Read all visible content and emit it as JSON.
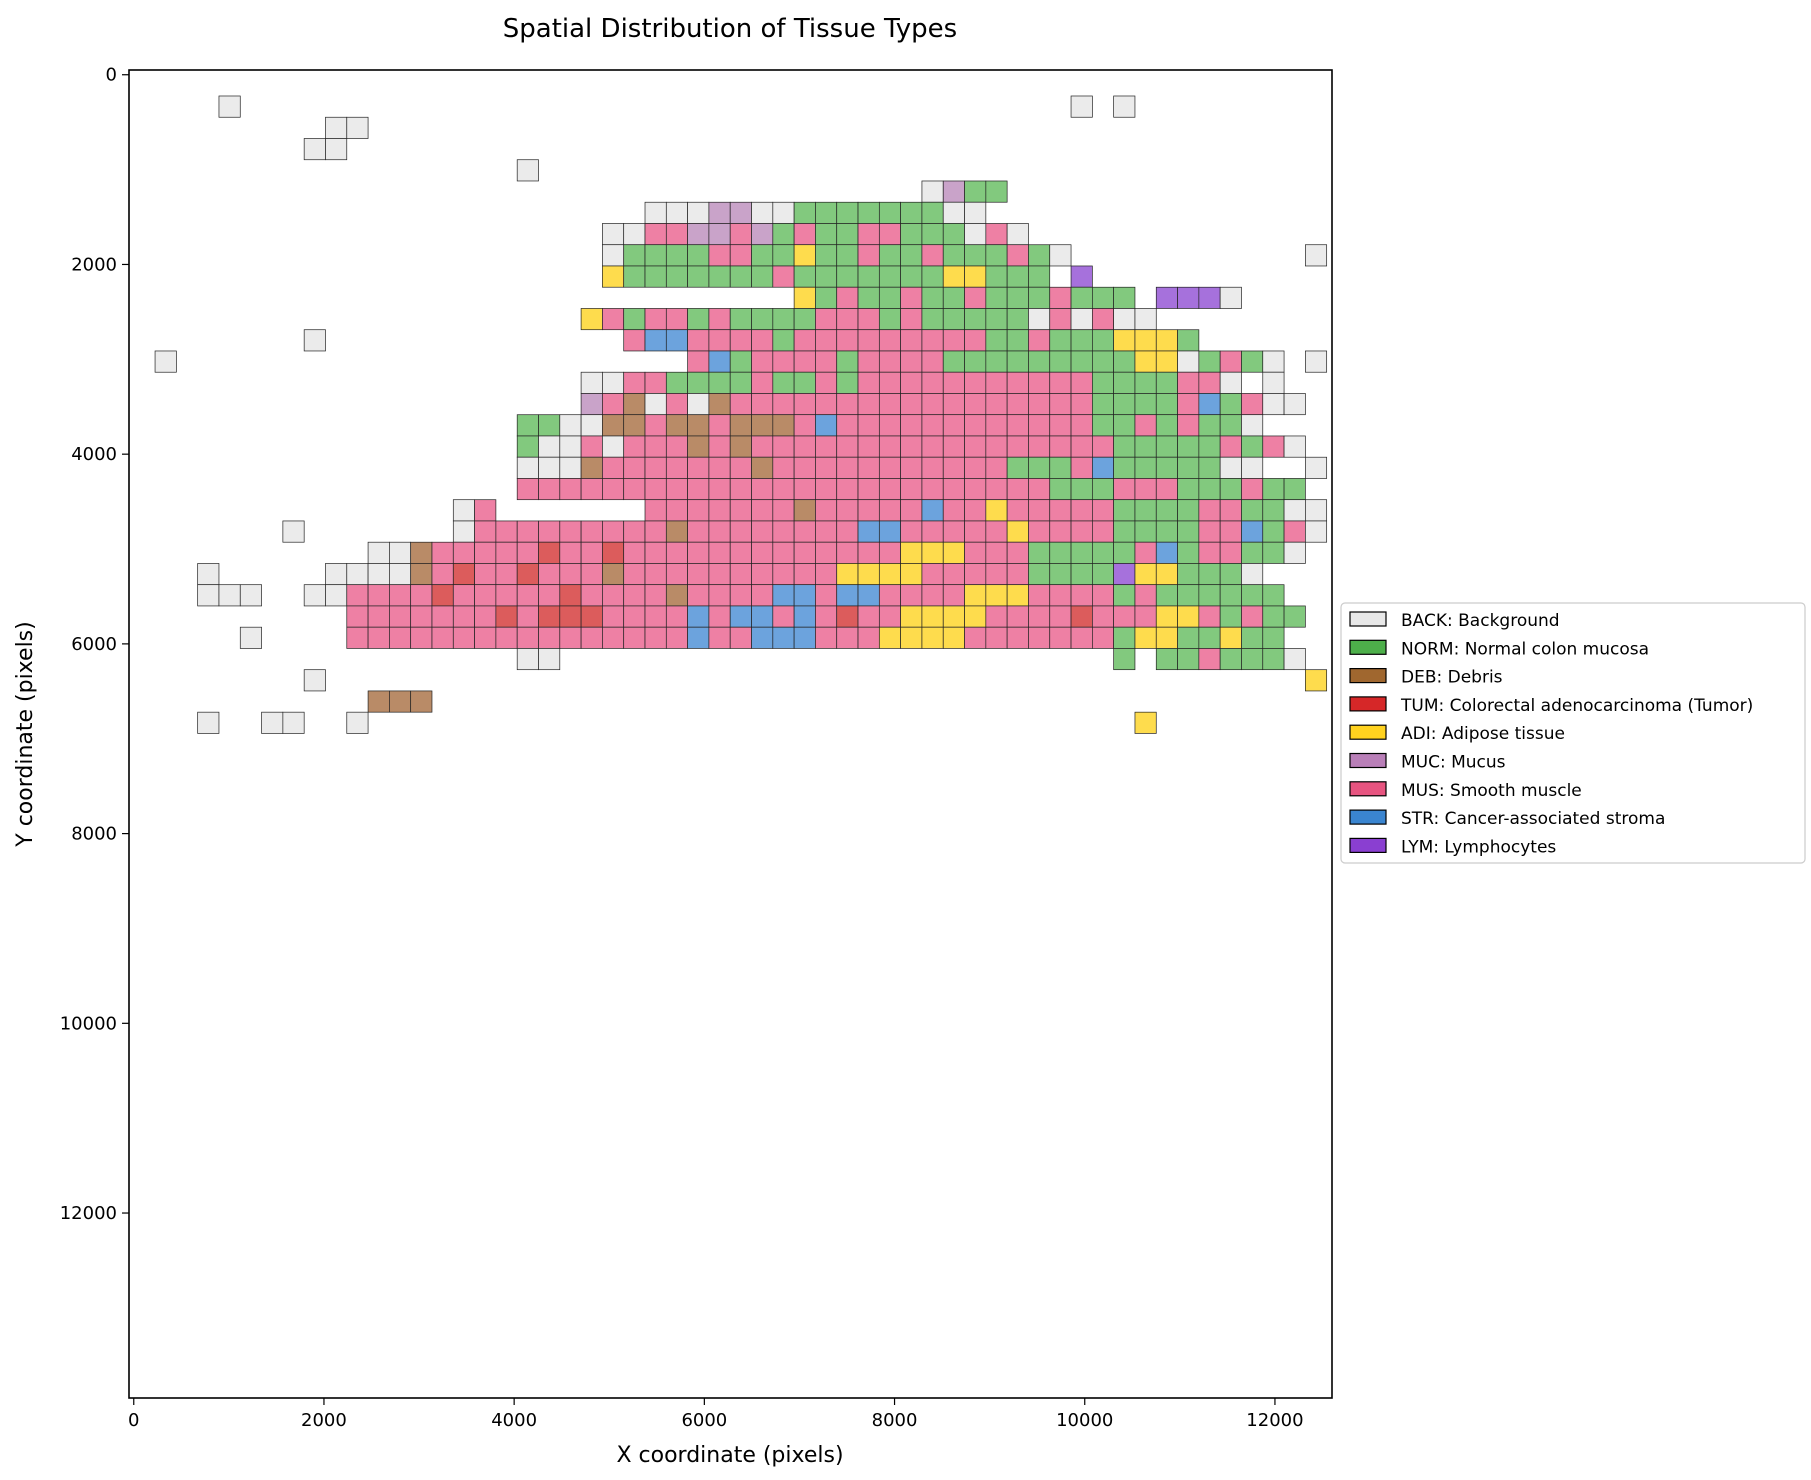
{
  "chart_data": {
    "type": "heatmap",
    "title": "Spatial Distribution of Tissue Types",
    "xlabel": "X coordinate (pixels)",
    "ylabel": "Y coordinate (pixels)",
    "xlim": [
      -50,
      12600
    ],
    "ylim": [
      13950,
      -50
    ],
    "y_inverted": true,
    "xticks": [
      0,
      2000,
      4000,
      6000,
      8000,
      10000,
      12000
    ],
    "yticks": [
      0,
      2000,
      4000,
      6000,
      8000,
      10000,
      12000
    ],
    "tile_size": 224,
    "legend_position": "center-right, outside plot",
    "classes": [
      {
        "code": "BACK",
        "label": "BACK: Background",
        "legend_color": "#e8e8e8",
        "tile_color": "#ebebeb"
      },
      {
        "code": "NORM",
        "label": "NORM: Normal colon mucosa",
        "legend_color": "#4daf4a",
        "tile_color": "#82c97e"
      },
      {
        "code": "DEB",
        "label": "DEB: Debris",
        "legend_color": "#a0672f",
        "tile_color": "#b98b67"
      },
      {
        "code": "TUM",
        "label": "TUM: Colorectal adenocarcinoma (Tumor)",
        "legend_color": "#d62728",
        "tile_color": "#dc5c5c"
      },
      {
        "code": "ADI",
        "label": "ADI: Adipose tissue",
        "legend_color": "#ffd21f",
        "tile_color": "#fedc4d"
      },
      {
        "code": "MUC",
        "label": "MUC: Mucus",
        "legend_color": "#b97fb8",
        "tile_color": "#c9a3c9"
      },
      {
        "code": "MUS",
        "label": "MUS: Smooth muscle",
        "legend_color": "#e75480",
        "tile_color": "#ee80a4"
      },
      {
        "code": "STR",
        "label": "STR: Cancer-associated stroma",
        "legend_color": "#3a85d0",
        "tile_color": "#6ca3dd"
      },
      {
        "code": "LYM",
        "label": "LYM: Lymphocytes",
        "legend_color": "#8a3fd1",
        "tile_color": "#a671dc"
      }
    ],
    "grid_origin": {
      "x": 0,
      "y": 0
    },
    "grid_rows_note": "Each string is one tile row (row index r => y = r*224). Characters map to tile columns (col index c => x = c*224). Codes: b=BACK g=NORM d=DEB t=TUM a=ADI c=MUC m=MUS s=STR l=LYM .=empty",
    "grid": [
      "..........................................................",
      "....b.......................................b.b...........",
      ".........bb...............................................",
      "........bb................................................",
      "..................b.......................................",
      ".....................................bcgg.................",
      "........................bbbccbbgggggggbb..................",
      "......................bbmmccmcgmggmmgggbmb................",
      "......................bggggmmggaggmggmgggmgb...........b..",
      "......................agggggggmgggggggaaggg.l.............",
      "...............................agmggmggmgggmggg.lllb......",
      ".....................amgmmgmggggmmmgmgggggbmbmbb...........",
      "........b..............mssmmmmgmmmmmmmmmggmgggaaag........",
      ".b........................msgmmmmgmmmmgggggggggaabgmgb.b...",
      ".....................bbmmggggmggmgmmmmmmmmmmmggggmmb.b.....",
      ".....................cmdbmbdmmmmmmmmmmmmmmmmmggggmsgmbb....",
      "..................ggbbddmddmdddmsmmmmmmmmmmmmggmgmggb....",
      "..................gbbmbmmmdmdmmmmmmmmmmmmmmmmmgggggmgmb..b",
      "..................bbbdmmmmmmmdmmmmmmmmmmmgggmsgggggbb..bb.",
      "..................mmmmmmmmmmmmmmmmmmmmmmmmmgggmmmgggmgg...",
      "...............bm.......mmmmmmmdmmmmmsmmammmmmggggmmggbb..",
      ".......b.......bmmmmmmmmmdmmmmmmmmssmmmmmammmmggggmmsgmb..",
      "...........bbdmmmmmtmmtmmmmmmmmmmmmmaaammmgggggmsgmmggb...",
      "...b.....bbbbdmtmmtmmmdmmmmmmmmmmaaaammmmmgggglaagggb.....",
      "...bbb..bbmmmmtmmmmmtmmmmdmmmmssmssmmmmaaammmmgmgggggg....",
      "..........mmmmmmmtmtttmmmmsmssmsmtmmaaaammmmtmmmaamgmgg...",
      ".....b....mmmmmmmmmmmmmmmmsmmsssmmmaaaammmmmmmgaaggagg....",
      "..................bb..........................g.ggmgggb...",
      "........b..............................................a..",
      "...........ddd.........................................",
      "...b..bb..b....................................a.........",
      "........................................................."
    ]
  }
}
